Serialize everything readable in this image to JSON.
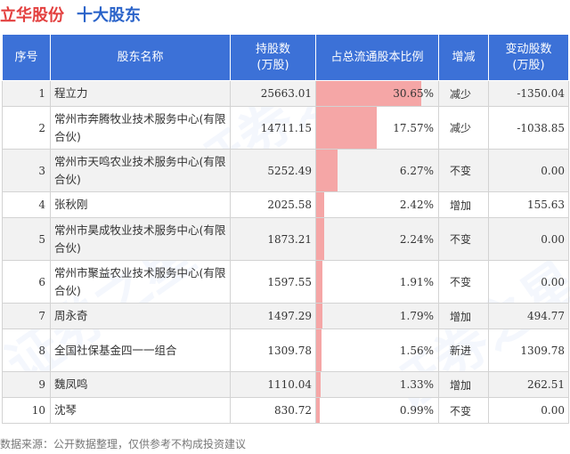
{
  "header": {
    "company": "立华股份",
    "section": "十大股东"
  },
  "table": {
    "columns": {
      "rank": "序号",
      "name": "股东名称",
      "shares_line1": "持股数",
      "shares_line2": "(万股)",
      "ratio": "占总流通股本比例",
      "trend": "增减",
      "change_line1": "变动股数",
      "change_line2": "(万股)"
    },
    "rows": [
      {
        "rank": "1",
        "name": "程立力",
        "shares": "25663.01",
        "ratio": "30.65%",
        "ratio_value": 30.65,
        "trend": "减少",
        "trend_type": "down",
        "change": "-1350.04"
      },
      {
        "rank": "2",
        "name": "常州市奔腾牧业技术服务中心(有限合伙)",
        "shares": "14711.15",
        "ratio": "17.57%",
        "ratio_value": 17.57,
        "trend": "减少",
        "trend_type": "down",
        "change": "-1038.85"
      },
      {
        "rank": "3",
        "name": "常州市天鸣农业技术服务中心(有限合伙)",
        "shares": "5252.49",
        "ratio": "6.27%",
        "ratio_value": 6.27,
        "trend": "不变",
        "trend_type": "same",
        "change": "0.00"
      },
      {
        "rank": "4",
        "name": "张秋刚",
        "shares": "2025.58",
        "ratio": "2.42%",
        "ratio_value": 2.42,
        "trend": "增加",
        "trend_type": "up",
        "change": "155.63"
      },
      {
        "rank": "5",
        "name": "常州市昊成牧业技术服务中心(有限合伙)",
        "shares": "1873.21",
        "ratio": "2.24%",
        "ratio_value": 2.24,
        "trend": "不变",
        "trend_type": "same",
        "change": "0.00"
      },
      {
        "rank": "6",
        "name": "常州市聚益农业技术服务中心(有限合伙)",
        "shares": "1597.55",
        "ratio": "1.91%",
        "ratio_value": 1.91,
        "trend": "不变",
        "trend_type": "same",
        "change": "0.00"
      },
      {
        "rank": "7",
        "name": "周永奇",
        "shares": "1497.29",
        "ratio": "1.79%",
        "ratio_value": 1.79,
        "trend": "增加",
        "trend_type": "up",
        "change": "494.77"
      },
      {
        "rank": "8",
        "name": "全国社保基金四一一组合",
        "shares": "1309.78",
        "ratio": "1.56%",
        "ratio_value": 1.56,
        "trend": "新进",
        "trend_type": "up",
        "change": "1309.78"
      },
      {
        "rank": "9",
        "name": "魏凤鸣",
        "shares": "1110.04",
        "ratio": "1.33%",
        "ratio_value": 1.33,
        "trend": "增加",
        "trend_type": "up",
        "change": "262.51"
      },
      {
        "rank": "10",
        "name": "沈琴",
        "shares": "830.72",
        "ratio": "0.99%",
        "ratio_value": 0.99,
        "trend": "不变",
        "trend_type": "same",
        "change": "0.00"
      }
    ]
  },
  "footer": {
    "source": "数据来源：公开数据整理，仅供参考不构成投资建议"
  },
  "watermark": "证券之星",
  "colors": {
    "header_bg": "#3c71d7",
    "company_title": "#e3403f",
    "section_title": "#2a63c9",
    "ratio_bar": "#f5a6a6",
    "trend_down": "#2e8b2e",
    "trend_up": "#e3403f"
  }
}
